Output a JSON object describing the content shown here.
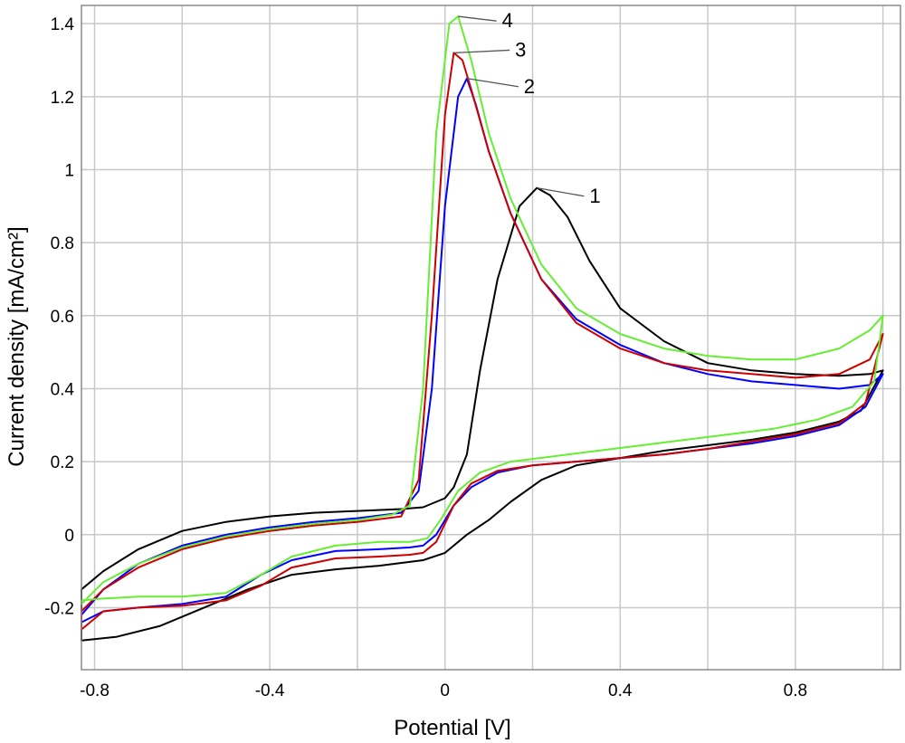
{
  "chart_data": {
    "type": "line",
    "title": "",
    "xlabel": "Potential [V]",
    "ylabel": "Current density [mA/cm²]",
    "xlim": [
      -0.83,
      1.04
    ],
    "ylim": [
      -0.37,
      1.45
    ],
    "grid": true,
    "x_ticks": [
      -0.8,
      -0.4,
      0,
      0.4,
      0.8
    ],
    "x_tick_labels": [
      "-0.8",
      "-0.4",
      "0",
      "0.4",
      "0.8"
    ],
    "y_ticks": [
      -0.2,
      0,
      0.2,
      0.4,
      0.6,
      0.8,
      1,
      1.2,
      1.4
    ],
    "y_tick_labels": [
      "-0.2",
      "0",
      "0.2",
      "0.4",
      "0.6",
      "0.8",
      "1",
      "1.2",
      "1.4"
    ],
    "series": [
      {
        "label": "1",
        "color": "#000000",
        "label_at": [
          0.33,
          0.91
        ],
        "points": [
          [
            -0.83,
            -0.29
          ],
          [
            -0.75,
            -0.28
          ],
          [
            -0.65,
            -0.25
          ],
          [
            -0.55,
            -0.2
          ],
          [
            -0.45,
            -0.15
          ],
          [
            -0.35,
            -0.11
          ],
          [
            -0.25,
            -0.095
          ],
          [
            -0.15,
            -0.085
          ],
          [
            -0.05,
            -0.07
          ],
          [
            0.0,
            -0.05
          ],
          [
            0.05,
            0.0
          ],
          [
            0.1,
            0.04
          ],
          [
            0.15,
            0.09
          ],
          [
            0.22,
            0.15
          ],
          [
            0.3,
            0.19
          ],
          [
            0.4,
            0.21
          ],
          [
            0.5,
            0.23
          ],
          [
            0.6,
            0.245
          ],
          [
            0.7,
            0.26
          ],
          [
            0.8,
            0.28
          ],
          [
            0.9,
            0.31
          ],
          [
            0.95,
            0.34
          ],
          [
            1.0,
            0.45
          ],
          [
            0.97,
            0.44
          ],
          [
            0.9,
            0.435
          ],
          [
            0.8,
            0.44
          ],
          [
            0.7,
            0.45
          ],
          [
            0.6,
            0.47
          ],
          [
            0.5,
            0.53
          ],
          [
            0.4,
            0.62
          ],
          [
            0.33,
            0.75
          ],
          [
            0.28,
            0.87
          ],
          [
            0.24,
            0.93
          ],
          [
            0.21,
            0.95
          ],
          [
            0.17,
            0.9
          ],
          [
            0.12,
            0.7
          ],
          [
            0.08,
            0.45
          ],
          [
            0.05,
            0.22
          ],
          [
            0.02,
            0.13
          ],
          [
            0.0,
            0.1
          ],
          [
            -0.05,
            0.075
          ],
          [
            -0.1,
            0.07
          ],
          [
            -0.2,
            0.065
          ],
          [
            -0.3,
            0.06
          ],
          [
            -0.4,
            0.05
          ],
          [
            -0.5,
            0.035
          ],
          [
            -0.6,
            0.01
          ],
          [
            -0.7,
            -0.04
          ],
          [
            -0.78,
            -0.1
          ],
          [
            -0.83,
            -0.15
          ]
        ]
      },
      {
        "label": "2",
        "color": "#0000ff",
        "label_at": [
          0.18,
          1.21
        ],
        "points": [
          [
            -0.83,
            -0.24
          ],
          [
            -0.78,
            -0.21
          ],
          [
            -0.7,
            -0.2
          ],
          [
            -0.6,
            -0.19
          ],
          [
            -0.5,
            -0.17
          ],
          [
            -0.42,
            -0.11
          ],
          [
            -0.35,
            -0.07
          ],
          [
            -0.25,
            -0.045
          ],
          [
            -0.15,
            -0.04
          ],
          [
            -0.08,
            -0.035
          ],
          [
            -0.05,
            -0.03
          ],
          [
            -0.02,
            0.0
          ],
          [
            0.02,
            0.08
          ],
          [
            0.06,
            0.13
          ],
          [
            0.12,
            0.17
          ],
          [
            0.2,
            0.19
          ],
          [
            0.3,
            0.2
          ],
          [
            0.4,
            0.21
          ],
          [
            0.5,
            0.22
          ],
          [
            0.6,
            0.235
          ],
          [
            0.7,
            0.25
          ],
          [
            0.8,
            0.27
          ],
          [
            0.9,
            0.3
          ],
          [
            0.96,
            0.35
          ],
          [
            1.0,
            0.44
          ],
          [
            0.97,
            0.41
          ],
          [
            0.9,
            0.4
          ],
          [
            0.8,
            0.41
          ],
          [
            0.7,
            0.42
          ],
          [
            0.6,
            0.44
          ],
          [
            0.5,
            0.47
          ],
          [
            0.4,
            0.52
          ],
          [
            0.3,
            0.59
          ],
          [
            0.22,
            0.7
          ],
          [
            0.15,
            0.88
          ],
          [
            0.1,
            1.05
          ],
          [
            0.07,
            1.18
          ],
          [
            0.05,
            1.25
          ],
          [
            0.03,
            1.2
          ],
          [
            0.0,
            0.9
          ],
          [
            -0.03,
            0.4
          ],
          [
            -0.06,
            0.12
          ],
          [
            -0.1,
            0.06
          ],
          [
            -0.2,
            0.045
          ],
          [
            -0.3,
            0.035
          ],
          [
            -0.4,
            0.02
          ],
          [
            -0.5,
            0.0
          ],
          [
            -0.6,
            -0.03
          ],
          [
            -0.7,
            -0.08
          ],
          [
            -0.78,
            -0.15
          ],
          [
            -0.83,
            -0.22
          ]
        ]
      },
      {
        "label": "3",
        "color": "#cc0000",
        "label_at": [
          0.16,
          1.31
        ],
        "points": [
          [
            -0.83,
            -0.26
          ],
          [
            -0.78,
            -0.21
          ],
          [
            -0.7,
            -0.2
          ],
          [
            -0.6,
            -0.195
          ],
          [
            -0.5,
            -0.18
          ],
          [
            -0.42,
            -0.14
          ],
          [
            -0.35,
            -0.09
          ],
          [
            -0.25,
            -0.065
          ],
          [
            -0.15,
            -0.06
          ],
          [
            -0.08,
            -0.055
          ],
          [
            -0.05,
            -0.05
          ],
          [
            -0.02,
            -0.02
          ],
          [
            0.02,
            0.08
          ],
          [
            0.06,
            0.14
          ],
          [
            0.12,
            0.175
          ],
          [
            0.2,
            0.19
          ],
          [
            0.3,
            0.2
          ],
          [
            0.4,
            0.21
          ],
          [
            0.5,
            0.22
          ],
          [
            0.6,
            0.235
          ],
          [
            0.7,
            0.255
          ],
          [
            0.8,
            0.275
          ],
          [
            0.9,
            0.305
          ],
          [
            0.96,
            0.36
          ],
          [
            1.0,
            0.55
          ],
          [
            0.97,
            0.48
          ],
          [
            0.9,
            0.44
          ],
          [
            0.8,
            0.43
          ],
          [
            0.7,
            0.44
          ],
          [
            0.6,
            0.45
          ],
          [
            0.5,
            0.47
          ],
          [
            0.4,
            0.51
          ],
          [
            0.3,
            0.58
          ],
          [
            0.22,
            0.7
          ],
          [
            0.15,
            0.88
          ],
          [
            0.1,
            1.05
          ],
          [
            0.06,
            1.22
          ],
          [
            0.04,
            1.3
          ],
          [
            0.02,
            1.32
          ],
          [
            0.0,
            1.15
          ],
          [
            -0.03,
            0.6
          ],
          [
            -0.06,
            0.15
          ],
          [
            -0.1,
            0.05
          ],
          [
            -0.2,
            0.035
          ],
          [
            -0.3,
            0.025
          ],
          [
            -0.4,
            0.01
          ],
          [
            -0.5,
            -0.01
          ],
          [
            -0.6,
            -0.04
          ],
          [
            -0.7,
            -0.09
          ],
          [
            -0.78,
            -0.15
          ],
          [
            -0.83,
            -0.21
          ]
        ]
      },
      {
        "label": "4",
        "color": "#66ee33",
        "label_at": [
          0.13,
          1.39
        ],
        "points": [
          [
            -0.83,
            -0.18
          ],
          [
            -0.78,
            -0.175
          ],
          [
            -0.7,
            -0.17
          ],
          [
            -0.6,
            -0.17
          ],
          [
            -0.5,
            -0.16
          ],
          [
            -0.42,
            -0.11
          ],
          [
            -0.35,
            -0.06
          ],
          [
            -0.25,
            -0.03
          ],
          [
            -0.15,
            -0.02
          ],
          [
            -0.08,
            -0.02
          ],
          [
            -0.04,
            -0.01
          ],
          [
            -0.01,
            0.04
          ],
          [
            0.03,
            0.12
          ],
          [
            0.08,
            0.17
          ],
          [
            0.15,
            0.2
          ],
          [
            0.25,
            0.215
          ],
          [
            0.35,
            0.23
          ],
          [
            0.45,
            0.245
          ],
          [
            0.55,
            0.26
          ],
          [
            0.65,
            0.275
          ],
          [
            0.75,
            0.29
          ],
          [
            0.85,
            0.315
          ],
          [
            0.93,
            0.35
          ],
          [
            0.98,
            0.42
          ],
          [
            1.0,
            0.6
          ],
          [
            0.97,
            0.56
          ],
          [
            0.9,
            0.51
          ],
          [
            0.8,
            0.48
          ],
          [
            0.7,
            0.48
          ],
          [
            0.6,
            0.49
          ],
          [
            0.5,
            0.51
          ],
          [
            0.4,
            0.55
          ],
          [
            0.3,
            0.62
          ],
          [
            0.22,
            0.74
          ],
          [
            0.15,
            0.92
          ],
          [
            0.1,
            1.1
          ],
          [
            0.06,
            1.3
          ],
          [
            0.03,
            1.42
          ],
          [
            0.01,
            1.4
          ],
          [
            -0.02,
            1.1
          ],
          [
            -0.05,
            0.4
          ],
          [
            -0.08,
            0.08
          ],
          [
            -0.12,
            0.055
          ],
          [
            -0.2,
            0.04
          ],
          [
            -0.3,
            0.03
          ],
          [
            -0.4,
            0.015
          ],
          [
            -0.5,
            -0.005
          ],
          [
            -0.6,
            -0.035
          ],
          [
            -0.7,
            -0.08
          ],
          [
            -0.78,
            -0.13
          ],
          [
            -0.83,
            -0.19
          ]
        ]
      }
    ]
  }
}
